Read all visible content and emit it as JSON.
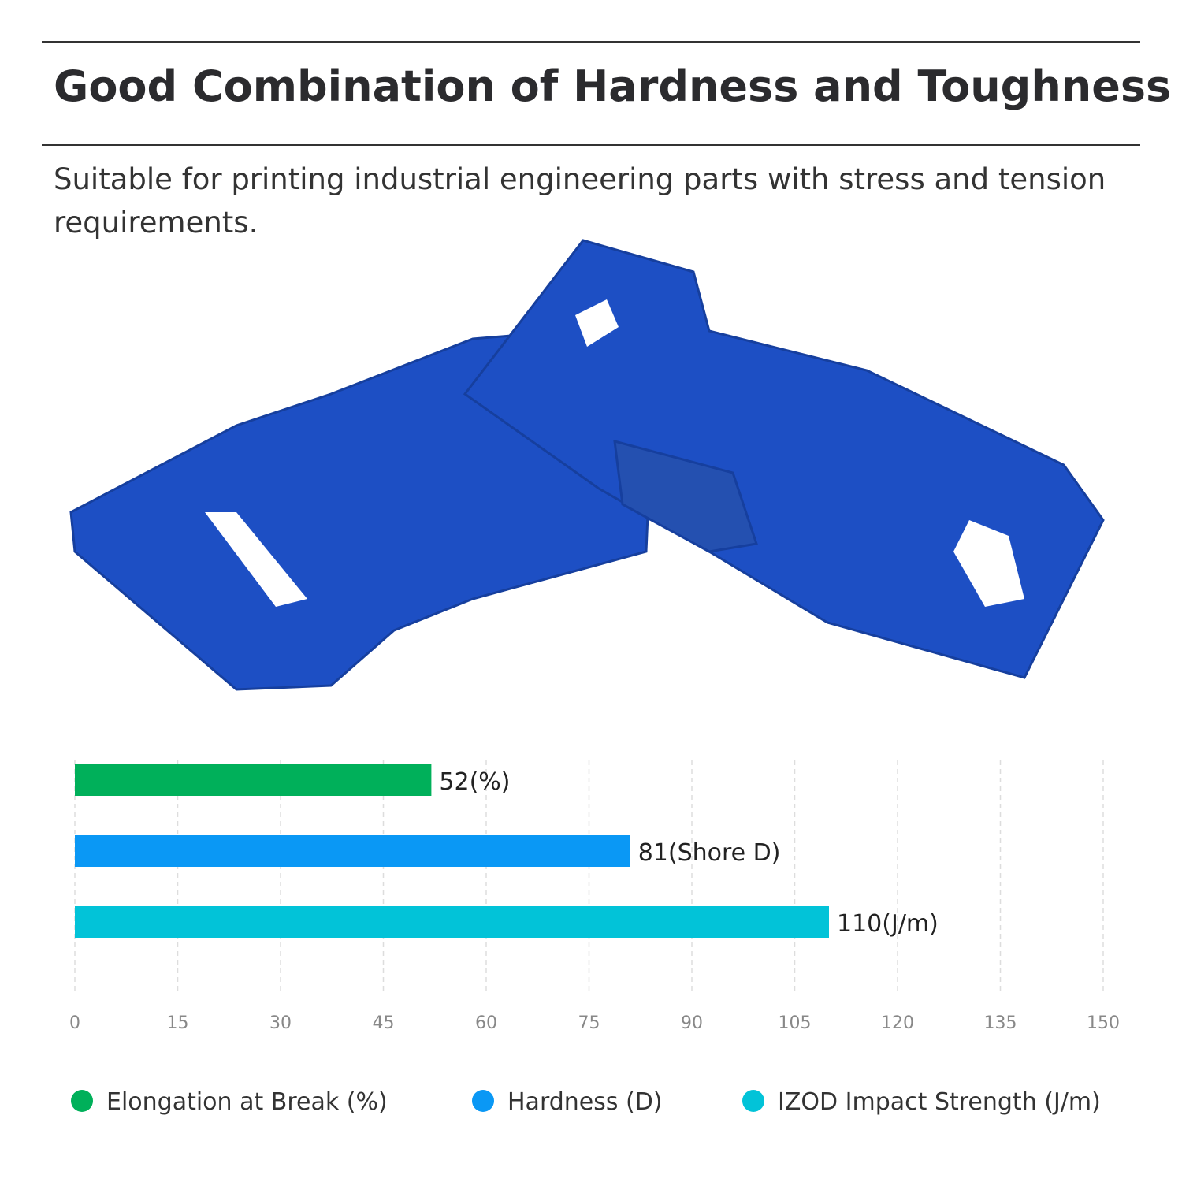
{
  "header": {
    "title": "Good Combination of Hardness and Toughness",
    "subtitle": "Suitable for printing industrial engineering parts with stress and tension requirements."
  },
  "chart_data": {
    "type": "bar",
    "orientation": "horizontal",
    "categories": [
      null
    ],
    "series": [
      {
        "name": "Elongation at Break (%)",
        "color": "#00b05a",
        "values": [
          52
        ],
        "value_labels": [
          "52(%)"
        ]
      },
      {
        "name": "Hardness (D)",
        "color": "#0a98f5",
        "values": [
          81
        ],
        "value_labels": [
          "81(Shore D)"
        ]
      },
      {
        "name": "IZOD Impact Strength (J/m)",
        "color": "#02c3d8",
        "values": [
          110
        ],
        "value_labels": [
          "110(J/m)"
        ]
      }
    ],
    "xlim": [
      0,
      150
    ],
    "xticks": [
      0,
      15,
      30,
      45,
      60,
      75,
      90,
      105,
      120,
      135,
      150
    ],
    "grid": true,
    "legend": "bottom"
  }
}
